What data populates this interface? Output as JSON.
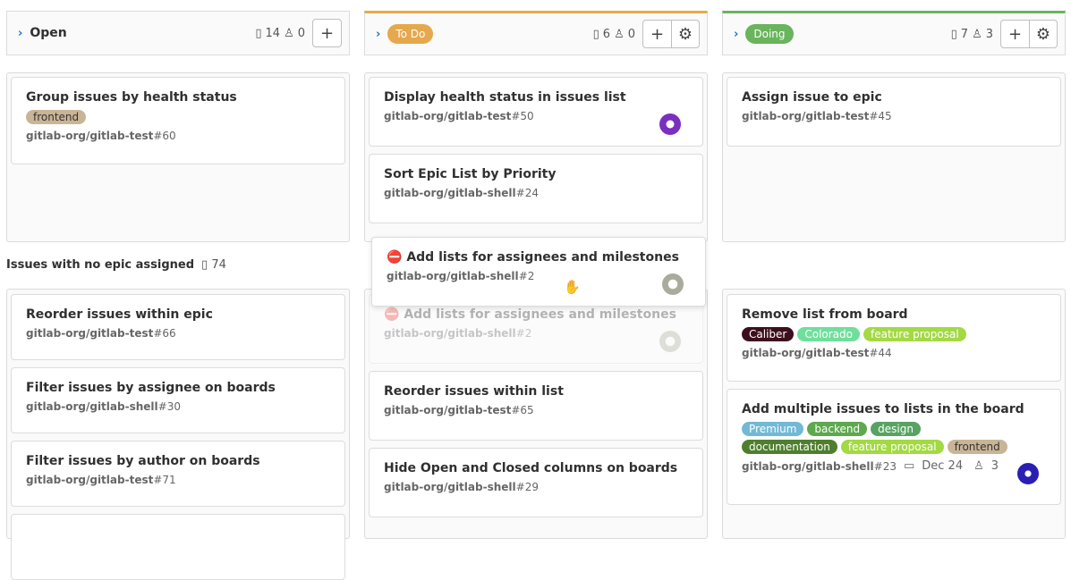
{
  "columns": [
    {
      "title": "Open",
      "issues": "14",
      "weight": "0",
      "color": ""
    },
    {
      "title": "To Do",
      "issues": "6",
      "weight": "0",
      "color": "#e6a84d"
    },
    {
      "title": "Doing",
      "issues": "7",
      "weight": "3",
      "color": "#69b45c"
    }
  ],
  "lane1": {
    "open": [
      {
        "title": "Group issues by health status",
        "labels": [
          {
            "text": "frontend",
            "color": "#c9b596"
          }
        ],
        "project": "gitlab-org/gitlab-test",
        "num": "#60"
      }
    ],
    "todo": [
      {
        "title": "Display health status in issues list",
        "project": "gitlab-org/gitlab-test",
        "num": "#50"
      },
      {
        "title": "Sort Epic List by Priority",
        "project": "gitlab-org/gitlab-shell",
        "num": "#24"
      }
    ],
    "doing": [
      {
        "title": "Assign issue to epic",
        "project": "gitlab-org/gitlab-test",
        "num": "#45"
      }
    ]
  },
  "lane2": {
    "title": "Issues with no epic assigned",
    "count": "74",
    "open": [
      {
        "title": "Reorder issues within epic",
        "project": "gitlab-org/gitlab-test",
        "num": "#66"
      },
      {
        "title": "Filter issues by assignee on boards",
        "project": "gitlab-org/gitlab-shell",
        "num": "#30"
      },
      {
        "title": "Filter issues by author on boards",
        "project": "gitlab-org/gitlab-test",
        "num": "#71"
      }
    ],
    "todo": [
      {
        "title": "Add lists for assignees and milestones",
        "project": "gitlab-org/gitlab-shell",
        "num": "#2"
      },
      {
        "title": "Reorder issues within list",
        "project": "gitlab-org/gitlab-test",
        "num": "#65"
      },
      {
        "title": "Hide Open and Closed columns on boards",
        "project": "gitlab-org/gitlab-shell",
        "num": "#29"
      }
    ],
    "doing": [
      {
        "title": "Remove list from board",
        "labels": [
          {
            "text": "Caliber",
            "color": "#3d0f1c"
          },
          {
            "text": "Colorado",
            "color": "#6fdf9c"
          },
          {
            "text": "feature proposal",
            "color": "#a3d943"
          }
        ],
        "project": "gitlab-org/gitlab-test",
        "num": "#44"
      },
      {
        "title": "Add multiple issues to lists in the board",
        "labels": [
          {
            "text": "Premium",
            "color": "#72b9d6"
          },
          {
            "text": "backend",
            "color": "#5ea84e"
          },
          {
            "text": "design",
            "color": "#58a363"
          },
          {
            "text": "documentation",
            "color": "#4f7f2e"
          },
          {
            "text": "feature proposal",
            "color": "#a3d943"
          },
          {
            "text": "frontend",
            "color": "#c9b596"
          }
        ],
        "project": "gitlab-org/gitlab-shell",
        "num": "#23",
        "due": "Dec 24",
        "weight": "3"
      }
    ]
  },
  "dragging": {
    "title": "Add lists for assignees and milestones",
    "project": "gitlab-org/gitlab-shell",
    "num": "#2"
  }
}
